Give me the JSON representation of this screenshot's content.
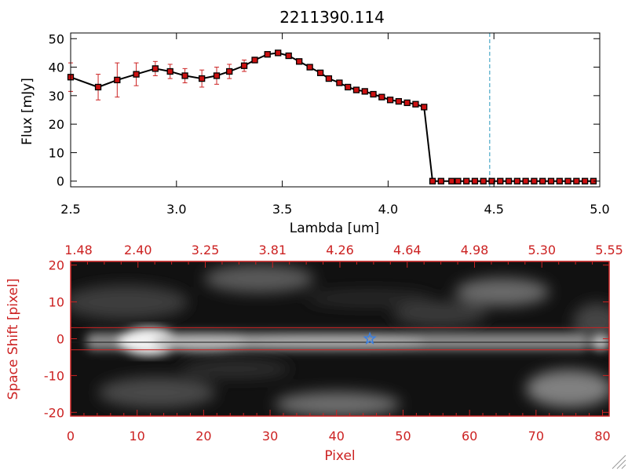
{
  "title": "2211390.114",
  "colors": {
    "axis": "#000000",
    "accent": "#cc2222",
    "errorbar": "#cc2222",
    "marker_fill": "#cc1111",
    "cutoff_line": "#4aa8c8",
    "star": "#3a7fe0"
  },
  "chart_data": [
    {
      "type": "line",
      "xlabel": "Lambda [um]",
      "ylabel": "Flux [mJy]",
      "xlim": [
        2.5,
        5.0
      ],
      "ylim": [
        -2,
        52
      ],
      "xticks": [
        "2.5",
        "3.0",
        "3.5",
        "4.0",
        "4.5",
        "5.0"
      ],
      "yticks": [
        "0",
        "10",
        "20",
        "30",
        "40",
        "50"
      ],
      "cutoff_line_x": 4.48,
      "series": [
        {
          "x": [
            2.5,
            2.63,
            2.72,
            2.81,
            2.9,
            2.97,
            3.04,
            3.12,
            3.19,
            3.25,
            3.32,
            3.37,
            3.43,
            3.48,
            3.53,
            3.58,
            3.63,
            3.68,
            3.72,
            3.77,
            3.81,
            3.85,
            3.89,
            3.93,
            3.97,
            4.01,
            4.05,
            4.09,
            4.13,
            4.17,
            4.21,
            4.25,
            4.3,
            4.33,
            4.37,
            4.41,
            4.45,
            4.49,
            4.53,
            4.57,
            4.61,
            4.65,
            4.69,
            4.73,
            4.77,
            4.81,
            4.85,
            4.89,
            4.93,
            4.97
          ],
          "y": [
            36.5,
            33,
            35.5,
            37.5,
            39.5,
            38.5,
            37,
            36,
            37,
            38.5,
            40.5,
            42.5,
            44.5,
            45,
            44,
            42,
            40,
            38,
            36,
            34.5,
            33,
            32,
            31.5,
            30.5,
            29.5,
            28.5,
            28,
            27.5,
            27,
            26,
            0,
            0,
            0,
            0,
            0,
            0,
            0,
            0,
            0,
            0,
            0,
            0,
            0,
            0,
            0,
            0,
            0,
            0,
            0,
            0
          ],
          "yerr": [
            5,
            4.5,
            6,
            4,
            2.5,
            2.5,
            2.5,
            3,
            3,
            2.5,
            2,
            1,
            0.5,
            0.5,
            0.5,
            0.5,
            0.5,
            0.5,
            0.5,
            0.5,
            0.5,
            0.5,
            0.5,
            0.5,
            0.5,
            0.5,
            0.5,
            0.5,
            0.5,
            0.5,
            0,
            0,
            0,
            0,
            0,
            0,
            0,
            0,
            0,
            0,
            0,
            0,
            0,
            0,
            0,
            0,
            0,
            0,
            0,
            0
          ]
        }
      ]
    },
    {
      "type": "heatmap",
      "xlabel": "Pixel",
      "ylabel": "Space Shift [pixel]",
      "xlim": [
        0,
        81
      ],
      "ylim": [
        -21,
        21
      ],
      "xticks": [
        "0",
        "10",
        "20",
        "30",
        "40",
        "50",
        "60",
        "70",
        "80"
      ],
      "yticks": [
        "-20",
        "-10",
        "0",
        "10",
        "20"
      ],
      "top_ticks": [
        "1.48",
        "2.40",
        "3.25",
        "3.81",
        "4.26",
        "4.64",
        "4.98",
        "5.30",
        "5.55"
      ],
      "aperture_lines_y": [
        3,
        -3
      ],
      "marker_x": 45
    }
  ]
}
